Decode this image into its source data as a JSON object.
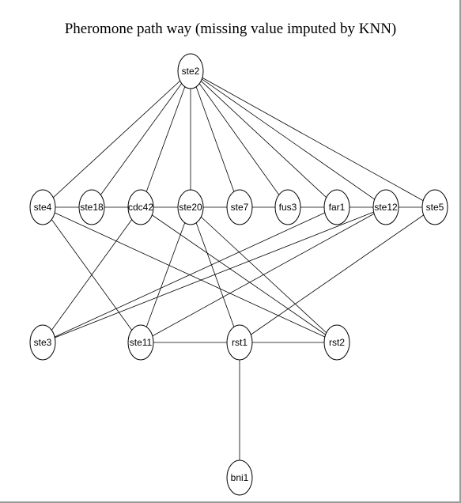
{
  "title": "Pheromone path way (missing value imputed by KNN)",
  "nodes": [
    {
      "id": "ste2",
      "label": "ste2"
    },
    {
      "id": "ste4",
      "label": "ste4"
    },
    {
      "id": "ste18",
      "label": "ste18"
    },
    {
      "id": "cdc42",
      "label": "cdc42"
    },
    {
      "id": "ste20",
      "label": "ste20"
    },
    {
      "id": "ste7",
      "label": "ste7"
    },
    {
      "id": "fus3",
      "label": "fus3"
    },
    {
      "id": "far1",
      "label": "far1"
    },
    {
      "id": "ste12",
      "label": "ste12"
    },
    {
      "id": "ste5",
      "label": "ste5"
    },
    {
      "id": "ste3",
      "label": "ste3"
    },
    {
      "id": "ste11",
      "label": "ste11"
    },
    {
      "id": "rst1",
      "label": "rst1"
    },
    {
      "id": "rst2",
      "label": "rst2"
    },
    {
      "id": "bni1",
      "label": "bni1"
    }
  ],
  "edges": [
    [
      "ste2",
      "ste4"
    ],
    [
      "ste2",
      "ste18"
    ],
    [
      "ste2",
      "cdc42"
    ],
    [
      "ste2",
      "ste20"
    ],
    [
      "ste2",
      "ste7"
    ],
    [
      "ste2",
      "fus3"
    ],
    [
      "ste2",
      "far1"
    ],
    [
      "ste2",
      "ste12"
    ],
    [
      "ste2",
      "ste5"
    ],
    [
      "ste4",
      "ste18"
    ],
    [
      "ste18",
      "cdc42"
    ],
    [
      "cdc42",
      "ste20"
    ],
    [
      "ste20",
      "ste7"
    ],
    [
      "ste7",
      "fus3"
    ],
    [
      "fus3",
      "far1"
    ],
    [
      "far1",
      "ste12"
    ],
    [
      "ste12",
      "ste5"
    ],
    [
      "ste4",
      "ste11"
    ],
    [
      "ste4",
      "rst2"
    ],
    [
      "cdc42",
      "ste3"
    ],
    [
      "cdc42",
      "rst2"
    ],
    [
      "ste20",
      "ste11"
    ],
    [
      "ste20",
      "rst1"
    ],
    [
      "ste20",
      "rst2"
    ],
    [
      "far1",
      "ste3"
    ],
    [
      "ste12",
      "ste3"
    ],
    [
      "ste12",
      "ste11"
    ],
    [
      "ste5",
      "rst1"
    ],
    [
      "ste11",
      "rst1"
    ],
    [
      "rst1",
      "rst2"
    ],
    [
      "rst1",
      "bni1"
    ]
  ]
}
